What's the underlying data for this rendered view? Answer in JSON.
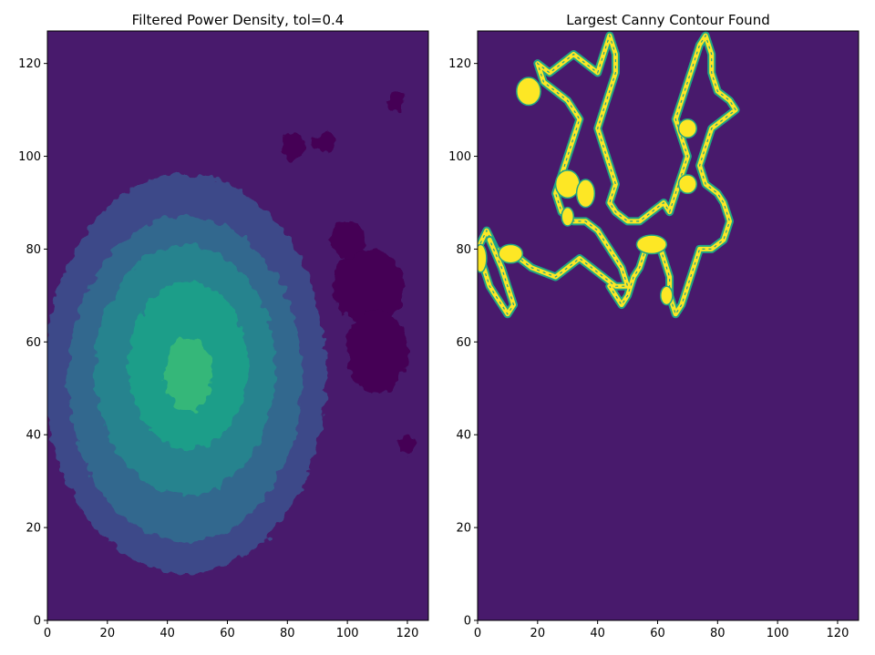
{
  "chart_data": [
    {
      "type": "heatmap",
      "title": "Filtered Power Density, tol=0.4",
      "xlabel": "",
      "ylabel": "",
      "xlim": [
        0,
        127
      ],
      "ylim": [
        0,
        127
      ],
      "xticks": [
        0,
        20,
        40,
        60,
        80,
        100,
        120
      ],
      "yticks": [
        0,
        20,
        40,
        60,
        80,
        100,
        120
      ],
      "colormap": [
        "#440154",
        "#481a6c",
        "#3f4889",
        "#31678e",
        "#26838f",
        "#1f9d8a",
        "#35b779"
      ],
      "contour_levels": [
        {
          "level": 1,
          "cx": 46,
          "cy": 53,
          "rx": 47,
          "ry": 43,
          "color": "#3e4a89"
        },
        {
          "level": 2,
          "cx": 46,
          "cy": 52,
          "rx": 39,
          "ry": 35,
          "color": "#31688e"
        },
        {
          "level": 3,
          "cx": 46,
          "cy": 54,
          "rx": 30,
          "ry": 27,
          "color": "#25838e"
        },
        {
          "level": 4,
          "cx": 47,
          "cy": 55,
          "rx": 20,
          "ry": 18,
          "color": "#1f9e89"
        },
        {
          "level": 5,
          "cx": 47,
          "cy": 53,
          "rx": 8,
          "ry": 8,
          "color": "#35b779"
        }
      ],
      "background_color": "#481a6c",
      "low_patch_color": "#440154",
      "low_patches": [
        {
          "cx": 107,
          "cy": 72,
          "rx": 12,
          "ry": 8
        },
        {
          "cx": 110,
          "cy": 58,
          "rx": 10,
          "ry": 9
        },
        {
          "cx": 100,
          "cy": 82,
          "rx": 6,
          "ry": 4
        },
        {
          "cx": 92,
          "cy": 103,
          "rx": 4,
          "ry": 2
        },
        {
          "cx": 82,
          "cy": 102,
          "rx": 4,
          "ry": 3
        },
        {
          "cx": 120,
          "cy": 38,
          "rx": 3,
          "ry": 2
        },
        {
          "cx": 116,
          "cy": 112,
          "rx": 3,
          "ry": 2
        }
      ]
    },
    {
      "type": "heatmap",
      "title": "Largest Canny Contour Found",
      "xlabel": "",
      "ylabel": "",
      "xlim": [
        0,
        127
      ],
      "ylim": [
        0,
        127
      ],
      "xticks": [
        0,
        20,
        40,
        60,
        80,
        100,
        120
      ],
      "yticks": [
        0,
        20,
        40,
        60,
        80,
        100,
        120
      ],
      "background_color": "#481a6c",
      "edge_color": "#fde725",
      "edge_outline_color": "#21a585",
      "contour_points": [
        [
          0,
          80
        ],
        [
          3,
          84
        ],
        [
          6,
          80
        ],
        [
          10,
          78
        ],
        [
          14,
          78
        ],
        [
          18,
          76
        ],
        [
          22,
          75
        ],
        [
          26,
          74
        ],
        [
          30,
          76
        ],
        [
          34,
          78
        ],
        [
          38,
          76
        ],
        [
          42,
          74
        ],
        [
          46,
          72
        ],
        [
          50,
          72
        ],
        [
          48,
          76
        ],
        [
          44,
          80
        ],
        [
          40,
          84
        ],
        [
          36,
          86
        ],
        [
          32,
          86
        ],
        [
          28,
          88
        ],
        [
          26,
          92
        ],
        [
          28,
          96
        ],
        [
          30,
          100
        ],
        [
          32,
          104
        ],
        [
          34,
          108
        ],
        [
          30,
          112
        ],
        [
          26,
          114
        ],
        [
          22,
          116
        ],
        [
          20,
          120
        ],
        [
          24,
          118
        ],
        [
          28,
          120
        ],
        [
          32,
          122
        ],
        [
          36,
          120
        ],
        [
          40,
          118
        ],
        [
          42,
          122
        ],
        [
          44,
          126
        ],
        [
          46,
          122
        ],
        [
          46,
          118
        ],
        [
          44,
          114
        ],
        [
          42,
          110
        ],
        [
          40,
          106
        ],
        [
          42,
          102
        ],
        [
          44,
          98
        ],
        [
          46,
          94
        ],
        [
          44,
          90
        ],
        [
          46,
          88
        ],
        [
          50,
          86
        ],
        [
          54,
          86
        ],
        [
          58,
          88
        ],
        [
          62,
          90
        ],
        [
          64,
          88
        ],
        [
          66,
          92
        ],
        [
          68,
          96
        ],
        [
          70,
          100
        ],
        [
          68,
          104
        ],
        [
          66,
          108
        ],
        [
          68,
          112
        ],
        [
          70,
          116
        ],
        [
          72,
          120
        ],
        [
          74,
          124
        ],
        [
          76,
          126
        ],
        [
          78,
          122
        ],
        [
          78,
          118
        ],
        [
          80,
          114
        ],
        [
          84,
          112
        ],
        [
          86,
          110
        ],
        [
          82,
          108
        ],
        [
          78,
          106
        ],
        [
          76,
          102
        ],
        [
          74,
          98
        ],
        [
          76,
          94
        ],
        [
          80,
          92
        ],
        [
          82,
          90
        ],
        [
          84,
          86
        ],
        [
          82,
          82
        ],
        [
          78,
          80
        ],
        [
          74,
          80
        ],
        [
          72,
          76
        ],
        [
          70,
          72
        ],
        [
          68,
          68
        ],
        [
          66,
          66
        ],
        [
          64,
          70
        ],
        [
          64,
          74
        ],
        [
          62,
          78
        ],
        [
          60,
          82
        ],
        [
          56,
          80
        ],
        [
          54,
          76
        ],
        [
          52,
          74
        ],
        [
          50,
          70
        ],
        [
          48,
          68
        ],
        [
          46,
          70
        ],
        [
          44,
          72
        ]
      ],
      "contour_tail": [
        [
          0,
          80
        ],
        [
          2,
          76
        ],
        [
          4,
          72
        ],
        [
          6,
          70
        ],
        [
          8,
          68
        ],
        [
          10,
          66
        ],
        [
          12,
          68
        ],
        [
          10,
          72
        ],
        [
          8,
          76
        ],
        [
          4,
          82
        ]
      ],
      "filled_blobs": [
        {
          "cx": 17,
          "cy": 114,
          "rx": 4,
          "ry": 3
        },
        {
          "cx": 30,
          "cy": 94,
          "rx": 4,
          "ry": 3
        },
        {
          "cx": 36,
          "cy": 92,
          "rx": 3,
          "ry": 3
        },
        {
          "cx": 70,
          "cy": 106,
          "rx": 3,
          "ry": 2
        },
        {
          "cx": 70,
          "cy": 94,
          "rx": 3,
          "ry": 2
        },
        {
          "cx": 58,
          "cy": 81,
          "rx": 5,
          "ry": 2
        },
        {
          "cx": 11,
          "cy": 79,
          "rx": 4,
          "ry": 2
        },
        {
          "cx": 1,
          "cy": 78,
          "rx": 2,
          "ry": 3
        },
        {
          "cx": 63,
          "cy": 70,
          "rx": 2,
          "ry": 2
        },
        {
          "cx": 30,
          "cy": 87,
          "rx": 2,
          "ry": 2
        }
      ]
    }
  ]
}
